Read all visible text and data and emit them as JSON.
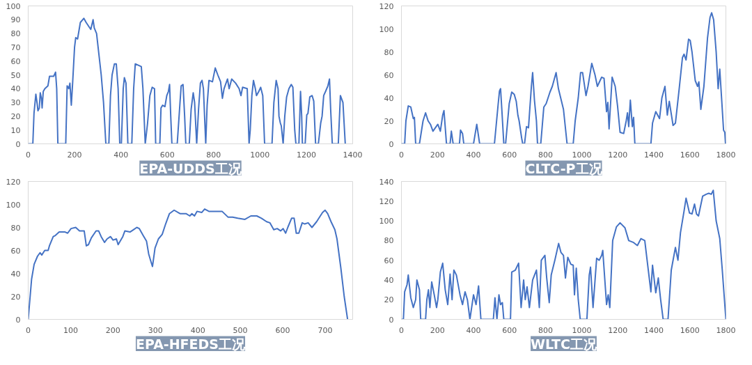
{
  "chart_data": [
    {
      "type": "line",
      "title": "EPA-UDDS工况",
      "xlim": [
        0,
        1400
      ],
      "ylim": [
        0,
        100
      ],
      "xticks": [
        0,
        200,
        400,
        600,
        800,
        1000,
        1200,
        1400
      ],
      "yticks": [
        0,
        10,
        20,
        30,
        40,
        50,
        60,
        70,
        80,
        90,
        100
      ],
      "series": [
        {
          "color": "#4472c4",
          "x": [
            0,
            20,
            25,
            33,
            38,
            42,
            48,
            52,
            57,
            60,
            65,
            72,
            85,
            92,
            100,
            110,
            118,
            123,
            128,
            162,
            168,
            175,
            180,
            186,
            192,
            200,
            205,
            213,
            225,
            240,
            250,
            262,
            270,
            280,
            285,
            295,
            305,
            315,
            325,
            335,
            348,
            355,
            362,
            372,
            380,
            388,
            395,
            402,
            410,
            415,
            422,
            430,
            447,
            455,
            462,
            475,
            488,
            495,
            505,
            515,
            525,
            535,
            545,
            550,
            568,
            573,
            580,
            590,
            598,
            605,
            610,
            615,
            620,
            643,
            655,
            660,
            668,
            675,
            680,
            695,
            703,
            712,
            718,
            727,
            735,
            743,
            750,
            756,
            766,
            772,
            780,
            795,
            807,
            818,
            830,
            838,
            845,
            860,
            867,
            878,
            895,
            910,
            918,
            925,
            945,
            953,
            958,
            965,
            972,
            980,
            985,
            995,
            1003,
            1012,
            1020,
            1052,
            1060,
            1070,
            1078,
            1082,
            1088,
            1092,
            1100,
            1107,
            1115,
            1125,
            1135,
            1142,
            1150,
            1155,
            1168,
            1175,
            1180,
            1183,
            1195,
            1202,
            1207,
            1215,
            1225,
            1232,
            1240,
            1252,
            1262,
            1268,
            1275,
            1283,
            1293,
            1300,
            1305,
            1312,
            1338,
            1347,
            1358,
            1368
          ],
          "values": [
            0,
            0,
            22,
            36,
            30,
            24,
            26,
            37,
            33,
            26,
            38,
            40,
            42,
            49,
            49,
            49,
            52,
            40,
            0,
            0,
            42,
            40,
            44,
            28,
            45,
            70,
            77,
            76,
            88,
            91,
            88,
            85,
            83,
            90,
            84,
            80,
            65,
            50,
            30,
            0,
            0,
            35,
            50,
            58,
            58,
            40,
            0,
            0,
            40,
            48,
            44,
            0,
            0,
            40,
            58,
            57,
            56,
            40,
            0,
            15,
            35,
            41,
            40,
            0,
            0,
            26,
            28,
            27,
            35,
            38,
            43,
            20,
            0,
            0,
            30,
            42,
            43,
            20,
            0,
            0,
            25,
            37,
            30,
            0,
            25,
            44,
            46,
            40,
            0,
            28,
            46,
            45,
            55,
            50,
            45,
            33,
            40,
            47,
            40,
            47,
            44,
            40,
            35,
            41,
            40,
            0,
            10,
            35,
            46,
            40,
            35,
            38,
            41,
            35,
            0,
            0,
            30,
            46,
            40,
            20,
            15,
            13,
            0,
            20,
            34,
            40,
            43,
            41,
            10,
            0,
            0,
            38,
            20,
            0,
            0,
            21,
            22,
            34,
            35,
            31,
            0,
            0,
            15,
            20,
            35,
            38,
            42,
            47,
            25,
            0,
            0,
            35,
            30,
            0
          ]
        }
      ]
    },
    {
      "type": "line",
      "title": "CLTC-P工况",
      "xlim": [
        0,
        1800
      ],
      "ylim": [
        0,
        120
      ],
      "xticks": [
        0,
        200,
        400,
        600,
        800,
        1000,
        1200,
        1400,
        1600,
        1800
      ],
      "yticks": [
        0,
        20,
        40,
        60,
        80,
        100,
        120
      ],
      "series": [
        {
          "color": "#4472c4",
          "x": [
            0,
            18,
            25,
            38,
            52,
            66,
            72,
            79,
            100,
            120,
            134,
            148,
            161,
            175,
            202,
            216,
            229,
            236,
            250,
            270,
            277,
            287,
            322,
            328,
            339,
            346,
            400,
            418,
            434,
            516,
            537,
            544,
            550,
            557,
            568,
            578,
            598,
            612,
            626,
            637,
            646,
            653,
            667,
            673,
            683,
            694,
            705,
            721,
            728,
            738,
            749,
            755,
            773,
            790,
            803,
            824,
            837,
            858,
            871,
            899,
            919,
            953,
            964,
            981,
            994,
            1005,
            1024,
            1035,
            1056,
            1074,
            1087,
            1111,
            1124,
            1138,
            1145,
            1152,
            1169,
            1186,
            1199,
            1213,
            1233,
            1247,
            1254,
            1261,
            1270,
            1281,
            1288,
            1295,
            1384,
            1393,
            1411,
            1432,
            1445,
            1462,
            1475,
            1486,
            1507,
            1520,
            1541,
            1559,
            1568,
            1579,
            1593,
            1602,
            1612,
            1630,
            1643,
            1650,
            1661,
            1678,
            1698,
            1712,
            1721,
            1732,
            1746,
            1757,
            1766,
            1776,
            1787,
            1794,
            1798
          ],
          "values": [
            0,
            0,
            20,
            33,
            32,
            22,
            23,
            0,
            0,
            20,
            27,
            20,
            17,
            11,
            17,
            11,
            25,
            29,
            0,
            0,
            11,
            0,
            0,
            12,
            9,
            0,
            0,
            17,
            0,
            0,
            35,
            46,
            48,
            30,
            0,
            0,
            35,
            45,
            43,
            37,
            25,
            20,
            5,
            0,
            0,
            15,
            14,
            50,
            62,
            38,
            20,
            0,
            0,
            32,
            35,
            45,
            50,
            62,
            48,
            30,
            0,
            0,
            20,
            40,
            62,
            62,
            42,
            50,
            70,
            60,
            50,
            58,
            57,
            28,
            36,
            13,
            58,
            50,
            33,
            10,
            9,
            20,
            27,
            15,
            38,
            15,
            23,
            0,
            0,
            18,
            28,
            22,
            40,
            50,
            25,
            37,
            16,
            18,
            48,
            75,
            78,
            73,
            91,
            90,
            80,
            55,
            50,
            54,
            30,
            50,
            92,
            110,
            114,
            108,
            80,
            48,
            65,
            40,
            12,
            10,
            0
          ]
        }
      ]
    },
    {
      "type": "line",
      "title": "EPA-HFEDS工况",
      "xlim": [
        0,
        765
      ],
      "ylim": [
        0,
        120
      ],
      "xticks": [
        0,
        100,
        200,
        300,
        400,
        500,
        600,
        700
      ],
      "yticks": [
        0,
        20,
        40,
        60,
        80,
        100,
        120
      ],
      "series": [
        {
          "color": "#4472c4",
          "x": [
            0,
            8,
            14,
            22,
            28,
            32,
            39,
            47,
            50,
            59,
            64,
            73,
            87,
            93,
            101,
            112,
            121,
            132,
            137,
            142,
            149,
            160,
            166,
            172,
            180,
            186,
            194,
            200,
            208,
            212,
            223,
            228,
            240,
            248,
            256,
            262,
            271,
            279,
            284,
            288,
            293,
            299,
            307,
            316,
            324,
            333,
            344,
            358,
            372,
            381,
            386,
            392,
            398,
            409,
            416,
            426,
            443,
            457,
            471,
            482,
            494,
            511,
            525,
            539,
            550,
            562,
            570,
            579,
            587,
            595,
            601,
            607,
            612,
            621,
            627,
            632,
            638,
            646,
            652,
            660,
            669,
            680,
            694,
            700,
            706,
            714,
            723,
            728,
            737,
            745,
            753
          ],
          "values": [
            0,
            35,
            48,
            55,
            58,
            56,
            60,
            60,
            64,
            72,
            73,
            76,
            76,
            75,
            79,
            80,
            77,
            77,
            64,
            65,
            71,
            77,
            77,
            72,
            67,
            70,
            72,
            69,
            70,
            65,
            72,
            77,
            76,
            78,
            80,
            79,
            73,
            68,
            57,
            52,
            46,
            62,
            70,
            74,
            83,
            92,
            95,
            92,
            92,
            90,
            92,
            90,
            94,
            93,
            96,
            94,
            94,
            94,
            89,
            89,
            88,
            87,
            90,
            90,
            88,
            85,
            84,
            78,
            79,
            77,
            79,
            75,
            80,
            88,
            88,
            75,
            75,
            84,
            83,
            84,
            80,
            85,
            93,
            95,
            92,
            85,
            78,
            70,
            45,
            20,
            0
          ]
        }
      ]
    },
    {
      "type": "line",
      "title": "WLTC工况",
      "xlim": [
        0,
        1800
      ],
      "ylim": [
        0,
        140
      ],
      "xticks": [
        0,
        200,
        400,
        600,
        800,
        1000,
        1200,
        1400,
        1600,
        1800
      ],
      "yticks": [
        0,
        20,
        40,
        60,
        80,
        100,
        120,
        140
      ],
      "series": [
        {
          "color": "#4472c4",
          "x": [
            0,
            11,
            18,
            31,
            38,
            52,
            66,
            79,
            86,
            100,
            107,
            134,
            141,
            150,
            158,
            168,
            182,
            195,
            202,
            216,
            229,
            243,
            257,
            270,
            281,
            291,
            305,
            325,
            339,
            353,
            366,
            380,
            400,
            414,
            428,
            441,
            510,
            519,
            530,
            541,
            550,
            560,
            568,
            605,
            612,
            632,
            650,
            664,
            678,
            687,
            697,
            710,
            728,
            749,
            765,
            776,
            796,
            806,
            820,
            831,
            851,
            872,
            885,
            899,
            910,
            923,
            940,
            953,
            960,
            970,
            981,
            992,
            1029,
            1042,
            1049,
            1063,
            1083,
            1097,
            1111,
            1117,
            1138,
            1147,
            1156,
            1172,
            1193,
            1213,
            1240,
            1261,
            1288,
            1309,
            1329,
            1350,
            1363,
            1384,
            1393,
            1411,
            1425,
            1438,
            1452,
            1479,
            1497,
            1520,
            1534,
            1548,
            1568,
            1579,
            1598,
            1612,
            1626,
            1637,
            1648,
            1671,
            1691,
            1705,
            1719,
            1730,
            1746,
            1766,
            1780,
            1800
          ],
          "values": [
            0,
            0,
            28,
            35,
            45,
            22,
            12,
            20,
            40,
            30,
            0,
            0,
            20,
            30,
            12,
            38,
            25,
            12,
            20,
            48,
            57,
            30,
            15,
            46,
            20,
            50,
            45,
            25,
            15,
            28,
            20,
            0,
            25,
            15,
            34,
            0,
            0,
            22,
            0,
            25,
            15,
            17,
            0,
            0,
            48,
            50,
            57,
            12,
            40,
            20,
            33,
            12,
            40,
            50,
            12,
            60,
            65,
            42,
            17,
            45,
            60,
            77,
            68,
            65,
            42,
            63,
            56,
            55,
            25,
            52,
            20,
            0,
            0,
            45,
            53,
            12,
            62,
            60,
            65,
            70,
            15,
            25,
            12,
            80,
            94,
            98,
            93,
            80,
            78,
            75,
            82,
            80,
            60,
            28,
            55,
            27,
            42,
            20,
            0,
            0,
            50,
            73,
            60,
            88,
            110,
            123,
            108,
            107,
            117,
            107,
            105,
            125,
            127,
            128,
            127,
            131,
            100,
            82,
            50,
            0
          ]
        }
      ]
    }
  ]
}
